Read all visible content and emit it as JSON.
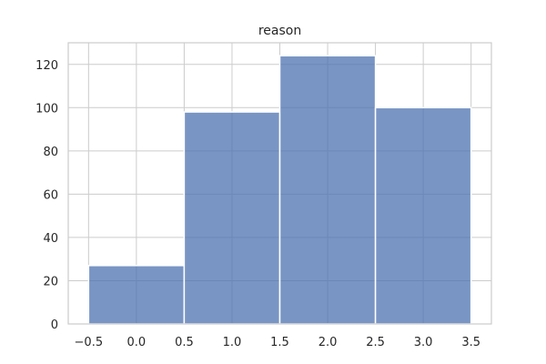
{
  "chart_data": {
    "type": "bar",
    "title": "reason",
    "xlabel": "",
    "ylabel": "",
    "bins": [
      {
        "start": -0.5,
        "end": 0.5,
        "value": 27
      },
      {
        "start": 0.5,
        "end": 1.5,
        "value": 98
      },
      {
        "start": 1.5,
        "end": 2.5,
        "value": 124
      },
      {
        "start": 2.5,
        "end": 3.5,
        "value": 100
      }
    ],
    "xlim": [
      -0.7125,
      3.7125
    ],
    "ylim": [
      0,
      130
    ],
    "x_ticks": [
      -0.5,
      0.0,
      0.5,
      1.0,
      1.5,
      2.0,
      2.5,
      3.0,
      3.5
    ],
    "x_tick_labels": [
      "−0.5",
      "0.0",
      "0.5",
      "1.0",
      "1.5",
      "2.0",
      "2.5",
      "3.0",
      "3.5"
    ],
    "y_ticks": [
      0,
      20,
      40,
      60,
      80,
      100,
      120
    ],
    "y_tick_labels": [
      "0",
      "20",
      "40",
      "60",
      "80",
      "100",
      "120"
    ],
    "grid": true,
    "bar_color": "#4c72b0",
    "bar_opacity": 0.75,
    "grid_color": "#cccccc"
  }
}
